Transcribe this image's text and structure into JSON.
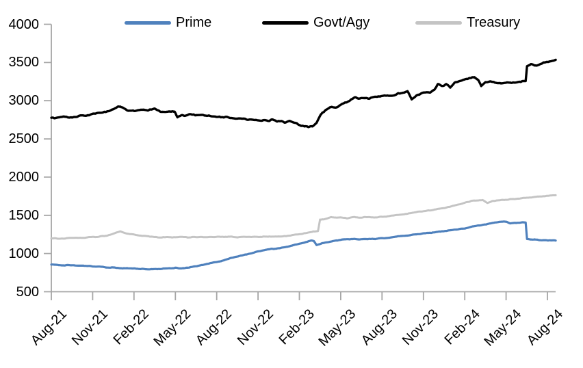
{
  "chart_data": {
    "type": "line",
    "title": "",
    "legend_position": "top",
    "grid": false,
    "axis_color": "#A6A6A6",
    "text_color": "#000000",
    "ylim": [
      500,
      4000
    ],
    "y_ticks": [
      500,
      1000,
      1500,
      2000,
      2500,
      3000,
      3500,
      4000
    ],
    "x_tick_labels": [
      "Aug-21",
      "Nov-21",
      "Feb-22",
      "May-22",
      "Aug-22",
      "Nov-22",
      "Feb-23",
      "May-23",
      "Aug-23",
      "Nov-23",
      "Feb-24",
      "May-24",
      "Aug-24"
    ],
    "x_unit": "month-index from Aug-21",
    "series": [
      {
        "name": "Prime",
        "color": "#4F81BD",
        "points": [
          [
            0,
            855
          ],
          [
            0.5,
            850
          ],
          [
            1,
            847
          ],
          [
            1.5,
            844
          ],
          [
            2,
            840
          ],
          [
            2.5,
            837
          ],
          [
            3,
            832
          ],
          [
            3.5,
            827
          ],
          [
            4,
            821
          ],
          [
            4.5,
            817
          ],
          [
            5,
            811
          ],
          [
            5.5,
            805
          ],
          [
            6,
            800
          ],
          [
            6.5,
            797
          ],
          [
            7,
            795
          ],
          [
            7.5,
            796
          ],
          [
            8,
            799
          ],
          [
            8.5,
            804
          ],
          [
            9,
            811
          ],
          [
            9.3,
            807
          ],
          [
            9.7,
            814
          ],
          [
            10,
            821
          ],
          [
            10.5,
            835
          ],
          [
            11,
            854
          ],
          [
            11.5,
            871
          ],
          [
            12,
            888
          ],
          [
            12.5,
            914
          ],
          [
            13,
            940
          ],
          [
            13.5,
            962
          ],
          [
            14,
            984
          ],
          [
            14.5,
            1004
          ],
          [
            15,
            1024
          ],
          [
            15.5,
            1046
          ],
          [
            16,
            1066
          ],
          [
            16.3,
            1058
          ],
          [
            16.7,
            1076
          ],
          [
            17,
            1088
          ],
          [
            17.5,
            1104
          ],
          [
            18,
            1124
          ],
          [
            18.5,
            1152
          ],
          [
            18.85,
            1172
          ],
          [
            19.05,
            1166
          ],
          [
            19.25,
            1114
          ],
          [
            19.6,
            1133
          ],
          [
            20,
            1147
          ],
          [
            20.5,
            1164
          ],
          [
            21,
            1179
          ],
          [
            21.5,
            1187
          ],
          [
            22,
            1191
          ],
          [
            22.35,
            1182
          ],
          [
            22.7,
            1189
          ],
          [
            23,
            1192
          ],
          [
            23.5,
            1190
          ],
          [
            24,
            1199
          ],
          [
            24.5,
            1210
          ],
          [
            25,
            1221
          ],
          [
            25.5,
            1231
          ],
          [
            26,
            1241
          ],
          [
            26.5,
            1251
          ],
          [
            27,
            1261
          ],
          [
            27.5,
            1271
          ],
          [
            28,
            1281
          ],
          [
            28.5,
            1292
          ],
          [
            29,
            1304
          ],
          [
            29.5,
            1317
          ],
          [
            30,
            1331
          ],
          [
            30.5,
            1349
          ],
          [
            31,
            1367
          ],
          [
            31.5,
            1384
          ],
          [
            32,
            1399
          ],
          [
            32.5,
            1411
          ],
          [
            33,
            1417
          ],
          [
            33.3,
            1394
          ],
          [
            33.65,
            1404
          ],
          [
            34,
            1407
          ],
          [
            34.42,
            1406
          ],
          [
            34.52,
            1190
          ],
          [
            35,
            1183
          ],
          [
            35.5,
            1177
          ],
          [
            36,
            1174
          ],
          [
            36.6,
            1172
          ]
        ]
      },
      {
        "name": "Govt/Agy",
        "color": "#000000",
        "points": [
          [
            0,
            2775
          ],
          [
            0.5,
            2781
          ],
          [
            1,
            2789
          ],
          [
            1.5,
            2784
          ],
          [
            2,
            2799
          ],
          [
            2.5,
            2811
          ],
          [
            3,
            2821
          ],
          [
            3.5,
            2839
          ],
          [
            4,
            2861
          ],
          [
            4.5,
            2894
          ],
          [
            5,
            2929
          ],
          [
            5.3,
            2904
          ],
          [
            5.6,
            2869
          ],
          [
            6,
            2864
          ],
          [
            6.5,
            2879
          ],
          [
            7,
            2871
          ],
          [
            7.5,
            2889
          ],
          [
            8,
            2857
          ],
          [
            8.5,
            2861
          ],
          [
            8.95,
            2856
          ],
          [
            9.15,
            2784
          ],
          [
            9.5,
            2811
          ],
          [
            10,
            2817
          ],
          [
            10.5,
            2804
          ],
          [
            11,
            2809
          ],
          [
            11.5,
            2797
          ],
          [
            12,
            2794
          ],
          [
            12.5,
            2787
          ],
          [
            13,
            2777
          ],
          [
            13.5,
            2767
          ],
          [
            14,
            2757
          ],
          [
            14.5,
            2749
          ],
          [
            15,
            2744
          ],
          [
            15.5,
            2737
          ],
          [
            16,
            2747
          ],
          [
            16.5,
            2729
          ],
          [
            17,
            2711
          ],
          [
            17.3,
            2731
          ],
          [
            17.7,
            2717
          ],
          [
            18,
            2684
          ],
          [
            18.3,
            2671
          ],
          [
            18.65,
            2651
          ],
          [
            18.95,
            2664
          ],
          [
            19.25,
            2714
          ],
          [
            19.55,
            2819
          ],
          [
            19.85,
            2869
          ],
          [
            20.05,
            2897
          ],
          [
            20.35,
            2927
          ],
          [
            20.65,
            2911
          ],
          [
            21,
            2947
          ],
          [
            21.5,
            2994
          ],
          [
            22,
            3039
          ],
          [
            22.3,
            3021
          ],
          [
            22.7,
            3041
          ],
          [
            23,
            3031
          ],
          [
            23.5,
            3047
          ],
          [
            24,
            3057
          ],
          [
            24.5,
            3067
          ],
          [
            25,
            3081
          ],
          [
            25.5,
            3107
          ],
          [
            25.85,
            3127
          ],
          [
            26.15,
            3021
          ],
          [
            26.5,
            3067
          ],
          [
            27,
            3097
          ],
          [
            27.5,
            3107
          ],
          [
            27.8,
            3149
          ],
          [
            28.05,
            3217
          ],
          [
            28.35,
            3191
          ],
          [
            28.65,
            3221
          ],
          [
            28.95,
            3171
          ],
          [
            29.25,
            3241
          ],
          [
            29.6,
            3251
          ],
          [
            30,
            3271
          ],
          [
            30.4,
            3297
          ],
          [
            30.7,
            3311
          ],
          [
            31,
            3261
          ],
          [
            31.2,
            3197
          ],
          [
            31.5,
            3251
          ],
          [
            32,
            3241
          ],
          [
            32.5,
            3231
          ],
          [
            33,
            3227
          ],
          [
            33.5,
            3241
          ],
          [
            34,
            3247
          ],
          [
            34.42,
            3254
          ],
          [
            34.52,
            3451
          ],
          [
            34.8,
            3469
          ],
          [
            35.2,
            3457
          ],
          [
            35.6,
            3481
          ],
          [
            36,
            3511
          ],
          [
            36.6,
            3531
          ]
        ]
      },
      {
        "name": "Treasury",
        "color": "#C4C4C4",
        "points": [
          [
            0,
            1200
          ],
          [
            0.5,
            1196
          ],
          [
            1,
            1198
          ],
          [
            1.5,
            1202
          ],
          [
            2,
            1205
          ],
          [
            2.5,
            1210
          ],
          [
            3,
            1215
          ],
          [
            3.5,
            1222
          ],
          [
            4,
            1232
          ],
          [
            4.5,
            1257
          ],
          [
            5,
            1287
          ],
          [
            5.4,
            1267
          ],
          [
            6,
            1251
          ],
          [
            6.5,
            1237
          ],
          [
            7,
            1224
          ],
          [
            7.5,
            1217
          ],
          [
            8,
            1212
          ],
          [
            8.5,
            1215
          ],
          [
            9,
            1211
          ],
          [
            9.5,
            1214
          ],
          [
            10,
            1211
          ],
          [
            10.5,
            1215
          ],
          [
            11,
            1213
          ],
          [
            11.5,
            1217
          ],
          [
            12,
            1219
          ],
          [
            12.5,
            1215
          ],
          [
            13,
            1219
          ],
          [
            13.5,
            1214
          ],
          [
            14,
            1217
          ],
          [
            14.5,
            1213
          ],
          [
            15,
            1219
          ],
          [
            15.5,
            1221
          ],
          [
            16,
            1224
          ],
          [
            16.5,
            1227
          ],
          [
            17,
            1231
          ],
          [
            17.5,
            1241
          ],
          [
            18,
            1254
          ],
          [
            18.5,
            1271
          ],
          [
            19,
            1287
          ],
          [
            19.35,
            1291
          ],
          [
            19.5,
            1444
          ],
          [
            19.8,
            1451
          ],
          [
            20,
            1461
          ],
          [
            20.3,
            1477
          ],
          [
            20.7,
            1467
          ],
          [
            21,
            1471
          ],
          [
            21.5,
            1464
          ],
          [
            22,
            1477
          ],
          [
            22.5,
            1471
          ],
          [
            23,
            1477
          ],
          [
            23.5,
            1471
          ],
          [
            24,
            1479
          ],
          [
            24.5,
            1489
          ],
          [
            25,
            1501
          ],
          [
            25.5,
            1514
          ],
          [
            26,
            1527
          ],
          [
            26.5,
            1541
          ],
          [
            27,
            1555
          ],
          [
            27.5,
            1567
          ],
          [
            28,
            1581
          ],
          [
            28.5,
            1595
          ],
          [
            29,
            1614
          ],
          [
            29.5,
            1639
          ],
          [
            30,
            1664
          ],
          [
            30.5,
            1689
          ],
          [
            31,
            1697
          ],
          [
            31.3,
            1701
          ],
          [
            31.65,
            1661
          ],
          [
            32,
            1687
          ],
          [
            32.5,
            1699
          ],
          [
            33,
            1704
          ],
          [
            33.5,
            1711
          ],
          [
            34,
            1721
          ],
          [
            34.5,
            1731
          ],
          [
            35,
            1739
          ],
          [
            35.5,
            1747
          ],
          [
            36,
            1755
          ],
          [
            36.6,
            1760
          ]
        ]
      }
    ]
  }
}
